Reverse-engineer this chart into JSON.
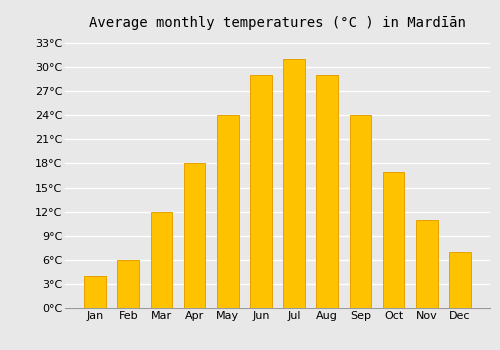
{
  "title": "Average monthly temperatures (°C ) in Mardīān",
  "months": [
    "Jan",
    "Feb",
    "Mar",
    "Apr",
    "May",
    "Jun",
    "Jul",
    "Aug",
    "Sep",
    "Oct",
    "Nov",
    "Dec"
  ],
  "values": [
    4,
    6,
    12,
    18,
    24,
    29,
    31,
    29,
    24,
    17,
    11,
    7
  ],
  "bar_color": "#FFC200",
  "bar_edge_color": "#E8A000",
  "yticks": [
    0,
    3,
    6,
    9,
    12,
    15,
    18,
    21,
    24,
    27,
    30,
    33
  ],
  "ytick_labels": [
    "0°C",
    "3°C",
    "6°C",
    "9°C",
    "12°C",
    "15°C",
    "18°C",
    "21°C",
    "24°C",
    "27°C",
    "30°C",
    "33°C"
  ],
  "ylim": [
    0,
    34
  ],
  "background_color": "#e8e8e8",
  "plot_bg_color": "#e8e8e8",
  "grid_color": "#ffffff",
  "title_fontsize": 10,
  "tick_fontsize": 8,
  "bar_width": 0.65
}
